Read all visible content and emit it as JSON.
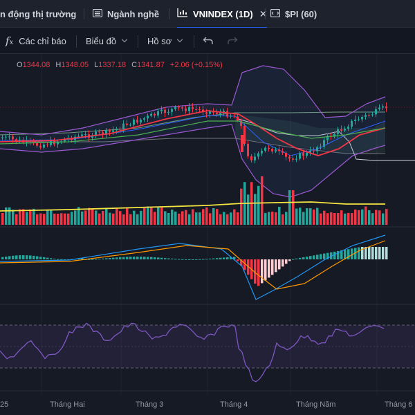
{
  "tabs": [
    {
      "label": "n động thị trường",
      "active": false
    },
    {
      "label": "Ngành nghề",
      "active": false
    },
    {
      "label": "VNINDEX (1D)",
      "active": true
    },
    {
      "label": "$PI (60)",
      "active": false
    }
  ],
  "toolbar": {
    "indicators_label": "Các chỉ báo",
    "chart_label": "Biểu đồ",
    "profile_label": "Hồ sơ"
  },
  "legend": {
    "o_key": "O",
    "o_val": "1344.08",
    "h_key": "H",
    "h_val": "1348.05",
    "l_key": "L",
    "l_val": "1337.18",
    "c_key": "C",
    "c_val": "1341.87",
    "change": "+2.06 (+0.15%)"
  },
  "colors": {
    "up": "#26a69a",
    "down": "#f23645",
    "background": "#161a25",
    "accent": "#2962ff",
    "rsi": "#7e57c2",
    "volume_ma": "#f5e642"
  },
  "x_axis": {
    "labels": [
      "25",
      "Tháng Hai",
      "Tháng 3",
      "Tháng 4",
      "Tháng Năm",
      "Tháng 6"
    ]
  },
  "icons": {
    "chart_tab": "candles-icon",
    "list_tab": "list-icon",
    "script_tab": "code-icon",
    "undo": "undo-icon",
    "redo": "redo-icon"
  }
}
